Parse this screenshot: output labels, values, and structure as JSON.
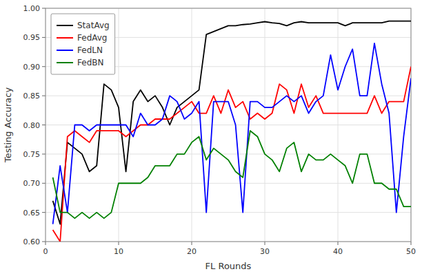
{
  "chart_data": {
    "type": "line",
    "xlabel": "FL Rounds",
    "ylabel": "Testing Accuracy",
    "x": [
      1,
      2,
      3,
      4,
      5,
      6,
      7,
      8,
      9,
      10,
      11,
      12,
      13,
      14,
      15,
      16,
      17,
      18,
      19,
      20,
      21,
      22,
      23,
      24,
      25,
      26,
      27,
      28,
      29,
      30,
      31,
      32,
      33,
      34,
      35,
      36,
      37,
      38,
      39,
      40,
      41,
      42,
      43,
      44,
      45,
      46,
      47,
      48,
      49,
      50
    ],
    "series": [
      {
        "name": "StatAvg",
        "color": "black",
        "values": [
          0.67,
          0.63,
          0.77,
          0.76,
          0.75,
          0.72,
          0.73,
          0.87,
          0.86,
          0.83,
          0.72,
          0.84,
          0.86,
          0.84,
          0.85,
          0.83,
          0.8,
          0.83,
          0.84,
          0.85,
          0.86,
          0.955,
          0.96,
          0.965,
          0.97,
          0.97,
          0.972,
          0.973,
          0.975,
          0.977,
          0.975,
          0.974,
          0.97,
          0.975,
          0.977,
          0.975,
          0.975,
          0.975,
          0.975,
          0.975,
          0.97,
          0.975,
          0.975,
          0.975,
          0.975,
          0.975,
          0.978,
          0.978,
          0.978,
          0.978
        ]
      },
      {
        "name": "FedAvg",
        "color": "red",
        "values": [
          0.62,
          0.6,
          0.78,
          0.79,
          0.78,
          0.77,
          0.79,
          0.79,
          0.79,
          0.79,
          0.78,
          0.79,
          0.8,
          0.8,
          0.81,
          0.81,
          0.81,
          0.82,
          0.83,
          0.84,
          0.82,
          0.82,
          0.85,
          0.82,
          0.86,
          0.83,
          0.84,
          0.81,
          0.82,
          0.81,
          0.82,
          0.87,
          0.86,
          0.82,
          0.87,
          0.83,
          0.85,
          0.82,
          0.82,
          0.82,
          0.82,
          0.82,
          0.82,
          0.82,
          0.85,
          0.82,
          0.84,
          0.84,
          0.84,
          0.9
        ]
      },
      {
        "name": "FedLN",
        "color": "blue",
        "values": [
          0.63,
          0.73,
          0.65,
          0.8,
          0.8,
          0.79,
          0.8,
          0.8,
          0.8,
          0.8,
          0.8,
          0.78,
          0.82,
          0.8,
          0.8,
          0.81,
          0.85,
          0.84,
          0.81,
          0.82,
          0.84,
          0.65,
          0.84,
          0.84,
          0.84,
          0.8,
          0.65,
          0.84,
          0.84,
          0.83,
          0.83,
          0.84,
          0.85,
          0.84,
          0.85,
          0.82,
          0.84,
          0.85,
          0.92,
          0.86,
          0.9,
          0.93,
          0.85,
          0.85,
          0.94,
          0.87,
          0.82,
          0.65,
          0.78,
          0.88
        ]
      },
      {
        "name": "FedBN",
        "color": "green",
        "values": [
          0.71,
          0.65,
          0.65,
          0.64,
          0.65,
          0.64,
          0.65,
          0.64,
          0.65,
          0.7,
          0.7,
          0.7,
          0.7,
          0.71,
          0.73,
          0.73,
          0.73,
          0.75,
          0.75,
          0.77,
          0.78,
          0.74,
          0.76,
          0.75,
          0.74,
          0.72,
          0.71,
          0.79,
          0.78,
          0.75,
          0.74,
          0.72,
          0.76,
          0.77,
          0.72,
          0.75,
          0.74,
          0.74,
          0.75,
          0.74,
          0.73,
          0.7,
          0.75,
          0.75,
          0.7,
          0.7,
          0.69,
          0.69,
          0.66,
          0.66
        ]
      }
    ],
    "xlim": [
      0,
      50
    ],
    "ylim": [
      0.6,
      1.0
    ],
    "xticks": [
      0,
      10,
      20,
      30,
      40,
      50
    ],
    "yticks": [
      {
        "value": 0.6,
        "label": "0.60"
      },
      0.65,
      {
        "value": 0.7,
        "label": "0.70"
      },
      0.75,
      {
        "value": 0.8,
        "label": "0.80"
      },
      0.85,
      {
        "value": 0.9,
        "label": "0.90"
      },
      0.95,
      {
        "value": 1.0,
        "label": "1.00"
      }
    ],
    "grid": true,
    "legend": "upper-left"
  }
}
